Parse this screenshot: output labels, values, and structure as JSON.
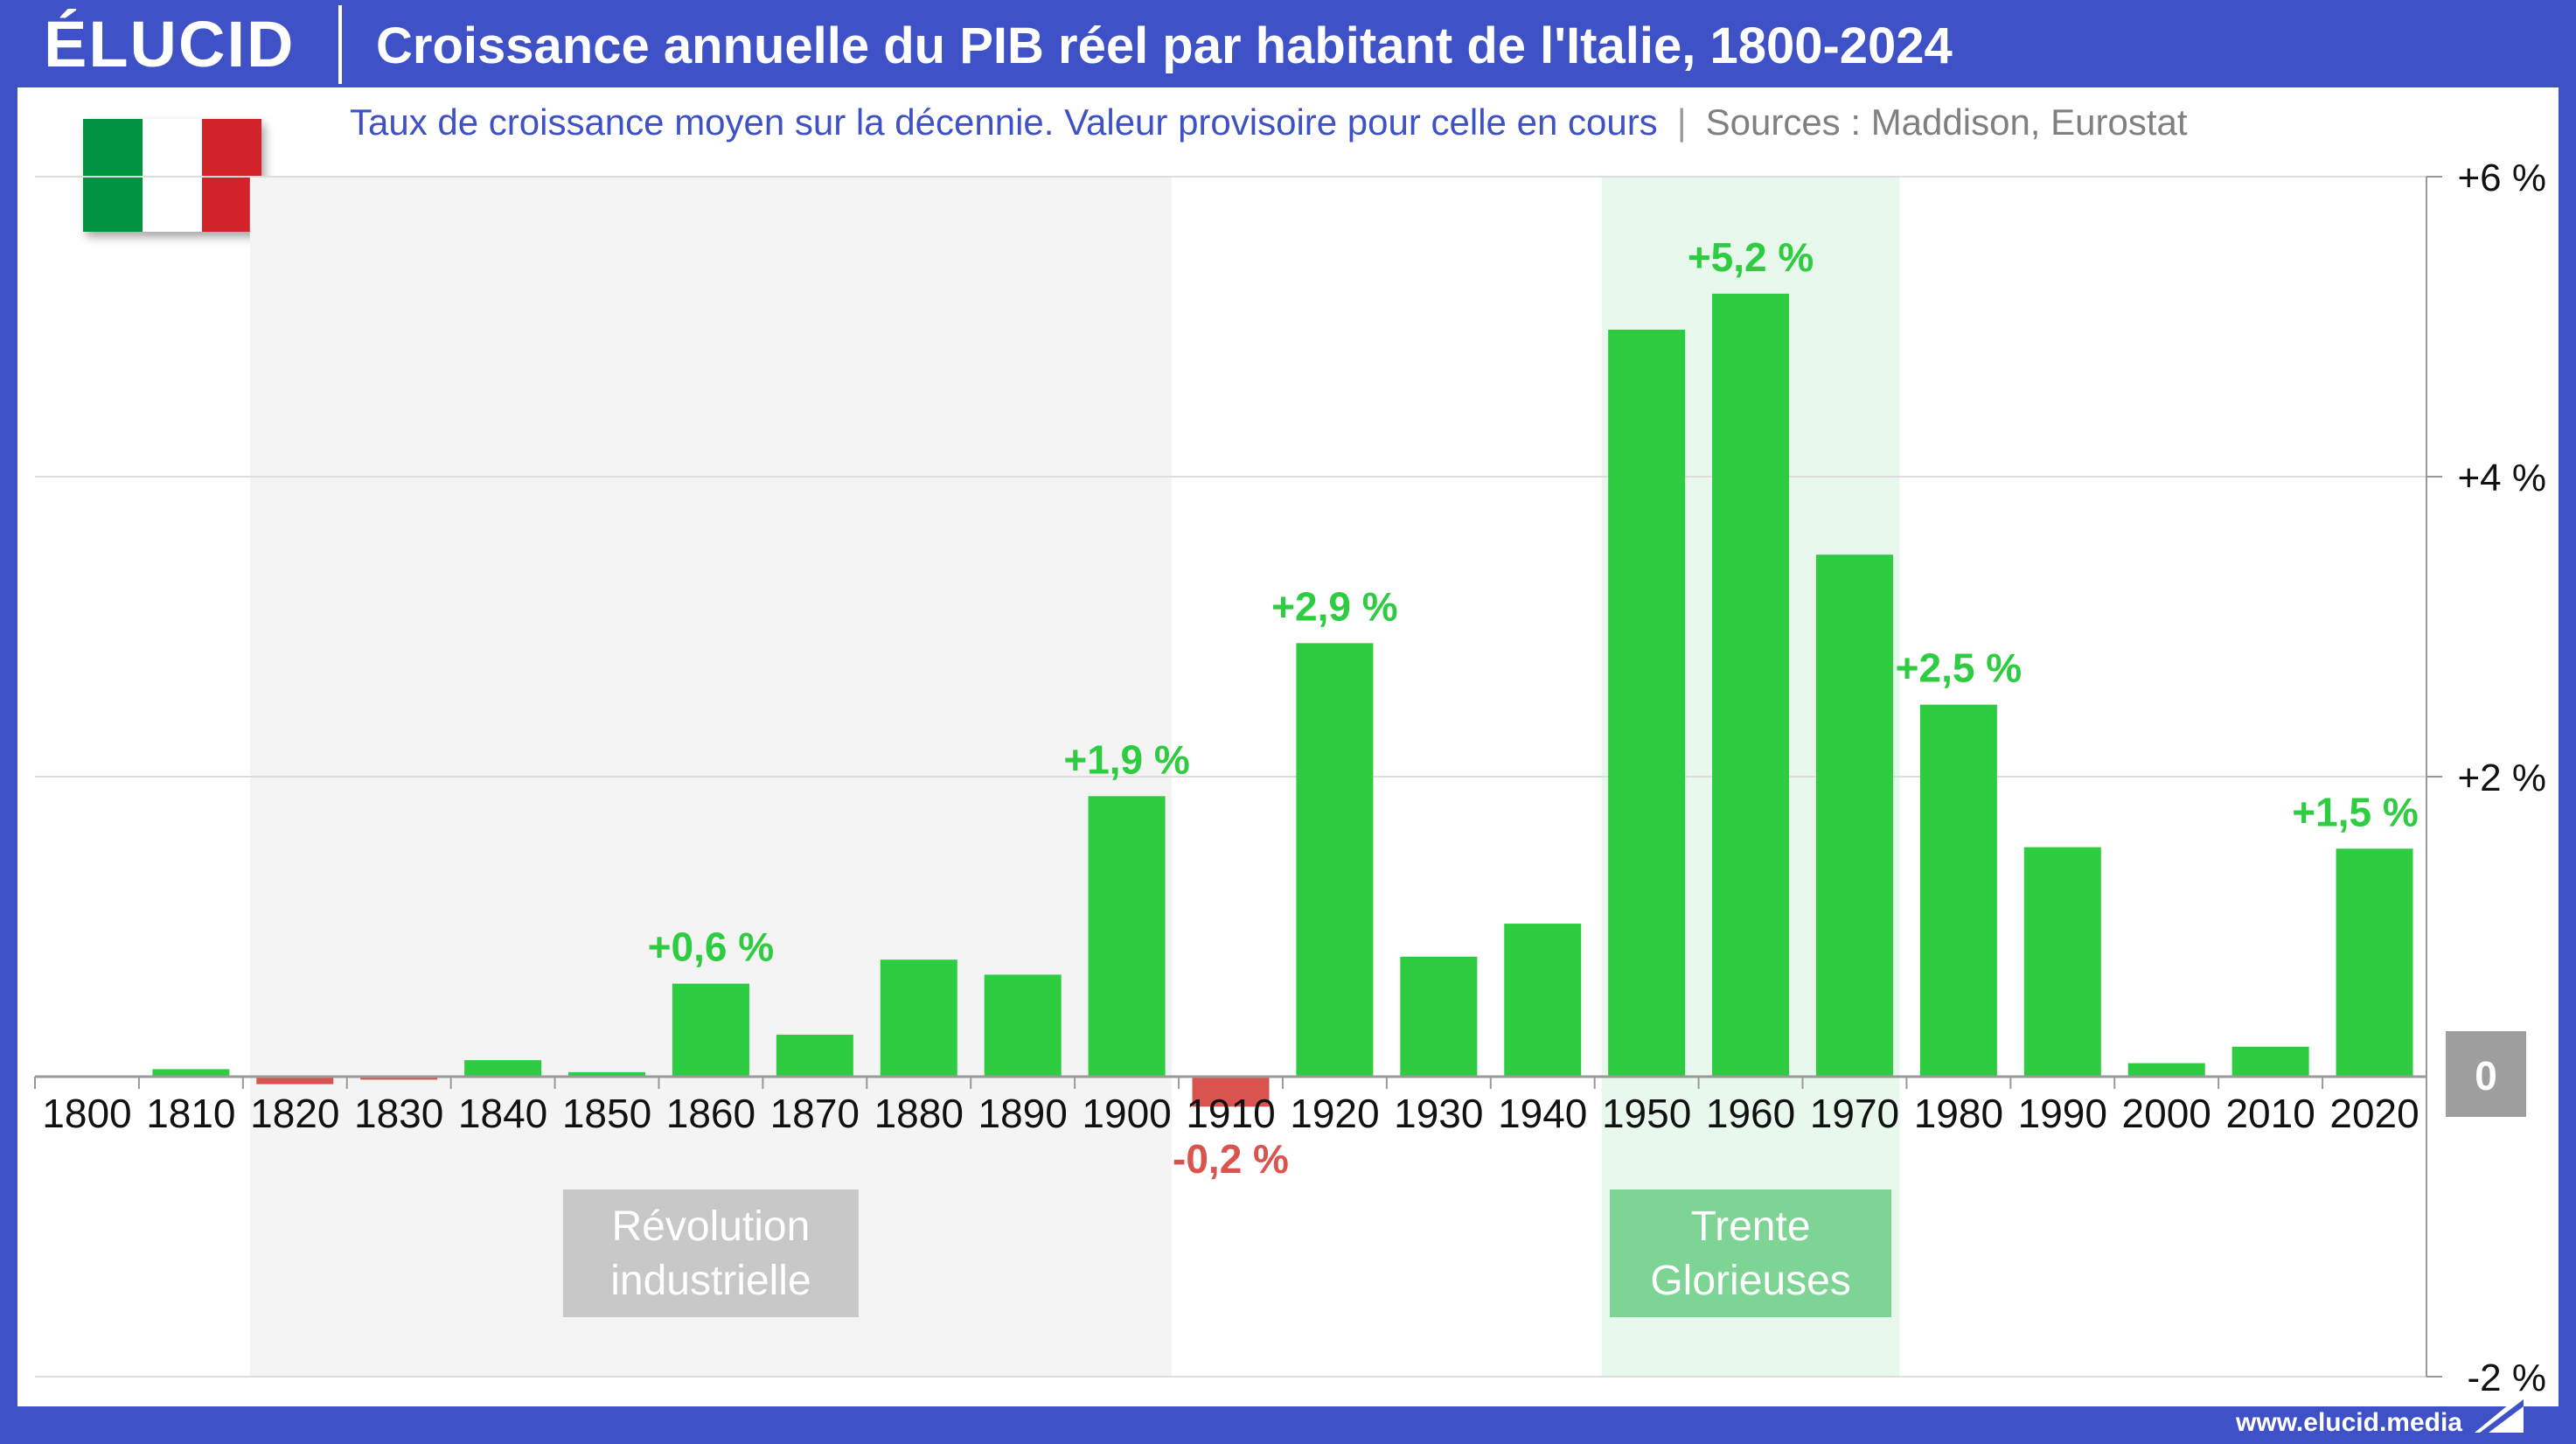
{
  "brand": {
    "logo": "ÉLUCID",
    "url": "www.elucid.media"
  },
  "header": {
    "title": "Croissance annuelle du PIB réel par habitant de l'Italie, 1800-2024",
    "subtitle": "Taux de croissance moyen sur la décennie. Valeur provisoire pour celle en cours",
    "separator": "|",
    "sources": "Sources :  Maddison, Eurostat"
  },
  "flag": {
    "colors": [
      "#00923f",
      "#ffffff",
      "#d2232a"
    ]
  },
  "colors": {
    "frame": "#3f51c6",
    "positive": "#2ecc40",
    "negative": "#d9534f",
    "zero_badge": "#9e9e9e"
  },
  "chart_data": {
    "type": "bar",
    "categories": [
      "1800",
      "1810",
      "1820",
      "1830",
      "1840",
      "1850",
      "1860",
      "1870",
      "1880",
      "1890",
      "1900",
      "1910",
      "1920",
      "1930",
      "1940",
      "1950",
      "1960",
      "1970",
      "1980",
      "1990",
      "2000",
      "2010",
      "2020"
    ],
    "values": [
      0.0,
      0.05,
      -0.05,
      -0.02,
      0.11,
      0.03,
      0.62,
      0.28,
      0.78,
      0.68,
      1.87,
      -0.2,
      2.89,
      0.8,
      1.02,
      4.98,
      5.22,
      3.48,
      2.48,
      1.53,
      0.09,
      0.2,
      1.52
    ],
    "ylim": [
      -2,
      6
    ],
    "yticks": [
      {
        "value": 6,
        "label": "+6 %"
      },
      {
        "value": 4,
        "label": "+4 %"
      },
      {
        "value": 2,
        "label": "+2 %"
      },
      {
        "value": -2,
        "label": "-2 %"
      }
    ],
    "zero_label": "0",
    "data_labels": [
      {
        "category": "1860",
        "text": "+0,6 %",
        "sign": "pos"
      },
      {
        "category": "1900",
        "text": "+1,9 %",
        "sign": "pos"
      },
      {
        "category": "1910",
        "text": "-0,2 %",
        "sign": "neg"
      },
      {
        "category": "1920",
        "text": "+2,9 %",
        "sign": "pos"
      },
      {
        "category": "1960",
        "text": "+5,2 %",
        "sign": "pos"
      },
      {
        "category": "1980",
        "text": "+2,5 %",
        "sign": "pos"
      },
      {
        "category": "2020",
        "text": "+1,5 %",
        "sign": "pos"
      }
    ],
    "bands": [
      {
        "from": "1820",
        "to": "1900",
        "label_lines": [
          "Révolution",
          "industrielle"
        ],
        "fill": "#f4f4f4",
        "box": "#c8c8c8"
      },
      {
        "from": "1950",
        "to": "1970",
        "label_lines": [
          "Trente",
          "Glorieuses"
        ],
        "fill": "#e9f8ec",
        "box": "#7ed494"
      }
    ],
    "grid": true,
    "legend": "none",
    "y_axis_side": "right"
  }
}
